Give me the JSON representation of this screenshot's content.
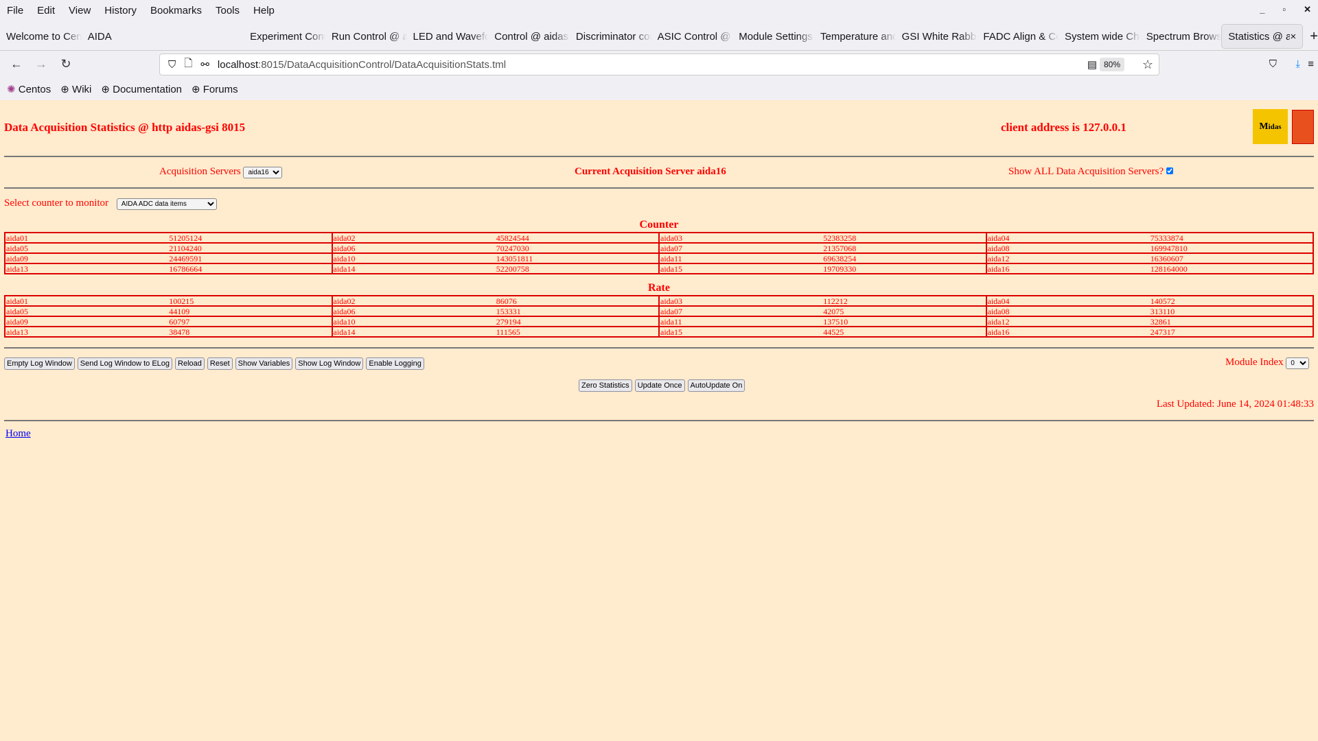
{
  "browser": {
    "menu": [
      "File",
      "Edit",
      "View",
      "History",
      "Bookmarks",
      "Tools",
      "Help"
    ],
    "tabs": [
      "Welcome to Centos",
      "AIDA",
      "Experiment Control",
      "Run Control @ aidas",
      "LED and Waveform",
      "Control @ aidas",
      "Discriminator control",
      "ASIC Control @",
      "Module Settings",
      "Temperature and",
      "GSI White Rabbit",
      "FADC Align & Control",
      "System wide Checks",
      "Spectrum Browser",
      "Statistics @ aidas"
    ],
    "active_tab": 14,
    "url_host": "localhost",
    "url_path": ":8015/DataAcquisitionControl/DataAcquisitionStats.tml",
    "zoom": "80%",
    "bookmarks": [
      "Centos",
      "Wiki",
      "Documentation",
      "Forums"
    ]
  },
  "page": {
    "title": "Data Acquisition Statistics @ http aidas-gsi 8015",
    "client": "client address is 127.0.0.1",
    "logo_text": "Midas",
    "acq_label": "Acquisition Servers",
    "acq_value": "aida16",
    "current_server": "Current Acquisition Server aida16",
    "show_all_label": "Show ALL Data Acquisition Servers?",
    "show_all_checked": true,
    "select_counter_label": "Select counter to monitor",
    "select_counter_value": "AIDA ADC data items",
    "counter_heading": "Counter",
    "counter": [
      [
        [
          "aida01",
          "51205124"
        ],
        [
          "aida02",
          "45824544"
        ],
        [
          "aida03",
          "52383258"
        ],
        [
          "aida04",
          "75333874"
        ]
      ],
      [
        [
          "aida05",
          "21104240"
        ],
        [
          "aida06",
          "70247030"
        ],
        [
          "aida07",
          "21357068"
        ],
        [
          "aida08",
          "169947810"
        ]
      ],
      [
        [
          "aida09",
          "24469591"
        ],
        [
          "aida10",
          "143051811"
        ],
        [
          "aida11",
          "69638254"
        ],
        [
          "aida12",
          "16360607"
        ]
      ],
      [
        [
          "aida13",
          "16786664"
        ],
        [
          "aida14",
          "52200758"
        ],
        [
          "aida15",
          "19709330"
        ],
        [
          "aida16",
          "128164000"
        ]
      ]
    ],
    "rate_heading": "Rate",
    "rate": [
      [
        [
          "aida01",
          "100215"
        ],
        [
          "aida02",
          "86076"
        ],
        [
          "aida03",
          "112212"
        ],
        [
          "aida04",
          "140572"
        ]
      ],
      [
        [
          "aida05",
          "44109"
        ],
        [
          "aida06",
          "153331"
        ],
        [
          "aida07",
          "42075"
        ],
        [
          "aida08",
          "313110"
        ]
      ],
      [
        [
          "aida09",
          "60797"
        ],
        [
          "aida10",
          "279194"
        ],
        [
          "aida11",
          "137510"
        ],
        [
          "aida12",
          "32861"
        ]
      ],
      [
        [
          "aida13",
          "38478"
        ],
        [
          "aida14",
          "111565"
        ],
        [
          "aida15",
          "44525"
        ],
        [
          "aida16",
          "247317"
        ]
      ]
    ],
    "buttons": [
      "Empty Log Window",
      "Send Log Window to ELog",
      "Reload",
      "Reset",
      "Show Variables",
      "Show Log Window",
      "Enable Logging"
    ],
    "module_index_label": "Module Index",
    "module_index_value": "0",
    "buttons2": [
      "Zero Statistics",
      "Update Once",
      "AutoUpdate On"
    ],
    "last_updated": "Last Updated: June 14, 2024 01:48:33",
    "home": "Home"
  }
}
